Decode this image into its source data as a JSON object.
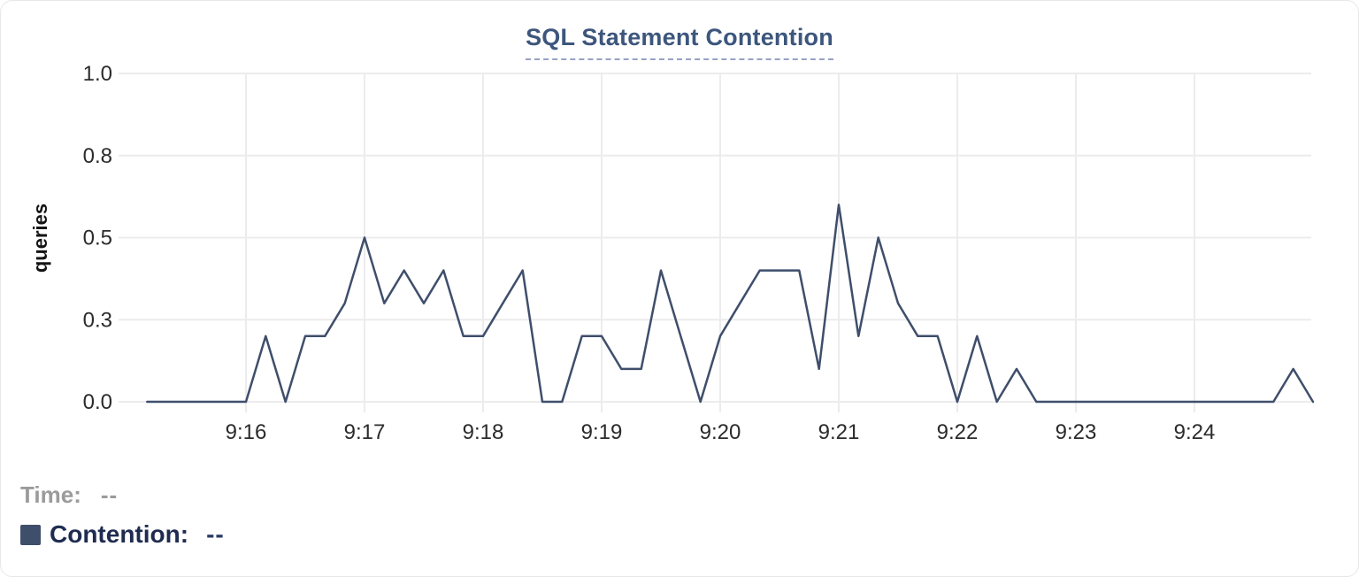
{
  "title": "SQL Statement Contention",
  "legend": {
    "time_label": "Time:",
    "time_value": "--",
    "contention_label": "Contention:",
    "contention_value": "--"
  },
  "colors": {
    "line": "#3f4e6b",
    "title": "#3d567c",
    "title_underline": "#98a1c6",
    "grid": "#ececec",
    "axis_text": "#2b2b2b",
    "legend_gray": "#9b9b9b",
    "legend_navy": "#1f2c50",
    "swatch": "#3e4e6b",
    "card_border": "#e7e7e7"
  },
  "chart_data": {
    "type": "line",
    "title": "SQL Statement Contention",
    "xlabel": "",
    "ylabel": "queries",
    "ylim": [
      0,
      1
    ],
    "grid": true,
    "legend_position": "bottom-left",
    "y_ticks": [
      {
        "value": 1.0,
        "label": "1.0"
      },
      {
        "value": 0.75,
        "label": "0.8"
      },
      {
        "value": 0.5,
        "label": "0.5"
      },
      {
        "value": 0.25,
        "label": "0.3"
      },
      {
        "value": 0.0,
        "label": "0.0"
      }
    ],
    "x_ticks": [
      "9:16",
      "9:17",
      "9:18",
      "9:19",
      "9:20",
      "9:21",
      "9:22",
      "9:23",
      "9:24"
    ],
    "x": [
      "9:15:10",
      "9:15:20",
      "9:15:30",
      "9:15:40",
      "9:15:50",
      "9:16:00",
      "9:16:10",
      "9:16:20",
      "9:16:30",
      "9:16:40",
      "9:16:50",
      "9:17:00",
      "9:17:10",
      "9:17:20",
      "9:17:30",
      "9:17:40",
      "9:17:50",
      "9:18:00",
      "9:18:10",
      "9:18:20",
      "9:18:30",
      "9:18:40",
      "9:18:50",
      "9:19:00",
      "9:19:10",
      "9:19:20",
      "9:19:30",
      "9:19:40",
      "9:19:50",
      "9:20:00",
      "9:20:10",
      "9:20:20",
      "9:20:30",
      "9:20:40",
      "9:20:50",
      "9:21:00",
      "9:21:10",
      "9:21:20",
      "9:21:30",
      "9:21:40",
      "9:21:50",
      "9:22:00",
      "9:22:10",
      "9:22:20",
      "9:22:30",
      "9:22:40",
      "9:22:50",
      "9:23:00",
      "9:23:10",
      "9:23:20",
      "9:23:30",
      "9:23:40",
      "9:23:50",
      "9:24:00",
      "9:24:10",
      "9:24:20",
      "9:24:30",
      "9:24:40",
      "9:24:50",
      "9:25:00"
    ],
    "series": [
      {
        "name": "Contention",
        "values": [
          0,
          0,
          0,
          0,
          0,
          0,
          0.2,
          0,
          0.2,
          0.2,
          0.3,
          0.5,
          0.3,
          0.4,
          0.3,
          0.4,
          0.2,
          0.2,
          0.3,
          0.4,
          0,
          0,
          0.2,
          0.2,
          0.1,
          0.1,
          0.4,
          0.2,
          0,
          0.2,
          0.3,
          0.4,
          0.4,
          0.4,
          0.1,
          0.6,
          0.2,
          0.5,
          0.3,
          0.2,
          0.2,
          0,
          0.2,
          0,
          0.1,
          0,
          0,
          0,
          0,
          0,
          0,
          0,
          0,
          0,
          0,
          0,
          0,
          0,
          0.1,
          0
        ]
      }
    ]
  }
}
